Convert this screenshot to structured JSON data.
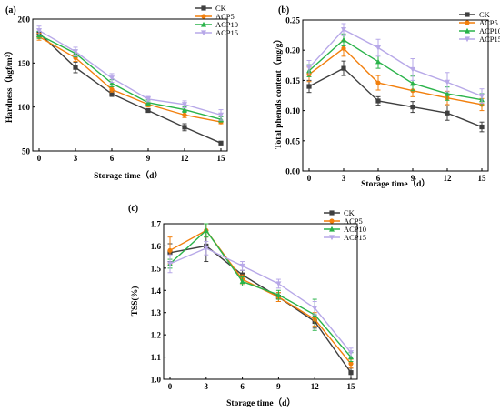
{
  "colors": {
    "CK": "#3f3f3f",
    "ACP5": "#f27f0c",
    "ACP10": "#2ab34a",
    "ACP15": "#b7a8e8"
  },
  "chart_data": [
    {
      "type": "line",
      "panel_label": "(a)",
      "xlabel": "Storage time（d）",
      "ylabel": "Hardness（kgf/m²）",
      "x": [
        0,
        3,
        6,
        9,
        12,
        15
      ],
      "xticks": [
        "0",
        "3",
        "6",
        "9",
        "12",
        "15"
      ],
      "ylim": [
        50,
        200
      ],
      "yticks": [
        50,
        100,
        150,
        200
      ],
      "yticklabels": [
        "50",
        "100",
        "150",
        "200"
      ],
      "legend_position": "top-right",
      "series": [
        {
          "name": "CK",
          "marker": "square",
          "values": [
            184,
            145,
            115,
            96,
            77,
            59
          ],
          "errors": [
            5,
            6,
            3,
            2,
            4,
            1
          ]
        },
        {
          "name": "ACP5",
          "marker": "circle",
          "values": [
            180,
            156,
            120,
            103,
            91,
            83
          ],
          "errors": [
            4,
            4,
            3,
            3,
            3,
            2
          ]
        },
        {
          "name": "ACP10",
          "marker": "triangle",
          "values": [
            182,
            161,
            127,
            105,
            97,
            86
          ],
          "errors": [
            4,
            4,
            4,
            3,
            3,
            3
          ]
        },
        {
          "name": "ACP15",
          "marker": "triangle-down",
          "values": [
            187,
            163,
            133,
            109,
            103,
            91
          ],
          "errors": [
            5,
            5,
            5,
            3,
            4,
            6
          ]
        }
      ]
    },
    {
      "type": "line",
      "panel_label": "(b)",
      "xlabel": "Storage time（d）",
      "ylabel": "Total phenols content（mg/g）",
      "x": [
        0,
        3,
        6,
        9,
        12,
        15
      ],
      "xticks": [
        "0",
        "3",
        "6",
        "9",
        "12",
        "15"
      ],
      "ylim": [
        0,
        0.25
      ],
      "yticks": [
        0,
        0.05,
        0.1,
        0.15,
        0.2,
        0.25
      ],
      "yticklabels": [
        "0.00",
        "0.05",
        "0.10",
        "0.15",
        "0.20",
        "0.25"
      ],
      "legend_position": "top-right",
      "series": [
        {
          "name": "CK",
          "marker": "square",
          "values": [
            0.14,
            0.17,
            0.116,
            0.106,
            0.096,
            0.073
          ],
          "errors": [
            0.01,
            0.012,
            0.007,
            0.009,
            0.012,
            0.008
          ]
        },
        {
          "name": "ACP5",
          "marker": "circle",
          "values": [
            0.16,
            0.203,
            0.146,
            0.133,
            0.121,
            0.11
          ],
          "errors": [
            0.012,
            0.013,
            0.012,
            0.01,
            0.011,
            0.01
          ]
        },
        {
          "name": "ACP10",
          "marker": "triangle",
          "values": [
            0.166,
            0.217,
            0.181,
            0.145,
            0.128,
            0.118
          ],
          "errors": [
            0.01,
            0.01,
            0.011,
            0.012,
            0.011,
            0.01
          ]
        },
        {
          "name": "ACP15",
          "marker": "triangle-down",
          "values": [
            0.171,
            0.234,
            0.204,
            0.168,
            0.147,
            0.124
          ],
          "errors": [
            0.012,
            0.01,
            0.014,
            0.018,
            0.016,
            0.012
          ]
        }
      ]
    },
    {
      "type": "line",
      "panel_label": "(c)",
      "xlabel": "Storage time（d）",
      "ylabel": "TSS(%)",
      "x": [
        0,
        3,
        6,
        9,
        12,
        15
      ],
      "xticks": [
        "0",
        "3",
        "6",
        "9",
        "12",
        "15"
      ],
      "ylim": [
        1.0,
        1.7
      ],
      "yticks": [
        1.0,
        1.1,
        1.2,
        1.3,
        1.4,
        1.5,
        1.6,
        1.7
      ],
      "yticklabels": [
        "1.0",
        "1.1",
        "1.2",
        "1.3",
        "1.4",
        "1.5",
        "1.6",
        "1.7"
      ],
      "legend_position": "top-right",
      "series": [
        {
          "name": "CK",
          "marker": "square",
          "values": [
            1.57,
            1.6,
            1.47,
            1.37,
            1.26,
            1.03
          ],
          "errors": [
            0.04,
            0.07,
            0.02,
            0.02,
            0.03,
            0.02
          ]
        },
        {
          "name": "ACP5",
          "marker": "circle",
          "values": [
            1.58,
            1.67,
            1.45,
            1.37,
            1.27,
            1.07
          ],
          "errors": [
            0.06,
            0.03,
            0.02,
            0.02,
            0.03,
            0.02
          ]
        },
        {
          "name": "ACP10",
          "marker": "triangle",
          "values": [
            1.52,
            1.67,
            1.44,
            1.38,
            1.29,
            1.1
          ],
          "errors": [
            0.02,
            0.03,
            0.02,
            0.02,
            0.07,
            0.02
          ]
        },
        {
          "name": "ACP15",
          "marker": "triangle-down",
          "values": [
            1.52,
            1.59,
            1.51,
            1.43,
            1.32,
            1.12
          ],
          "errors": [
            0.04,
            0.03,
            0.02,
            0.02,
            0.03,
            0.02
          ]
        }
      ]
    }
  ]
}
